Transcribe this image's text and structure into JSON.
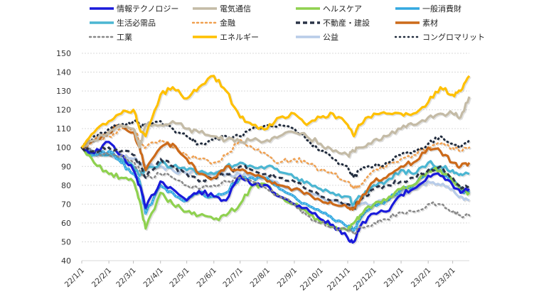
{
  "chart_data": {
    "type": "line",
    "title": "",
    "xlabel": "",
    "ylabel": "",
    "ylim": [
      40,
      150
    ],
    "yticks": [
      40,
      50,
      60,
      70,
      80,
      90,
      100,
      110,
      120,
      130,
      140,
      150
    ],
    "grid": true,
    "legend_position": "top",
    "x_tick_labels": [
      "22/1/1",
      "22/2/1",
      "22/3/1",
      "22/4/1",
      "22/5/1",
      "22/6/1",
      "22/7/1",
      "22/8/1",
      "22/9/1",
      "22/10/1",
      "22/11/1",
      "22/12/1",
      "23/1/1",
      "23/2/1",
      "23/3/1"
    ],
    "x": [
      "22/1/1",
      "22/1/15",
      "22/2/1",
      "22/2/15",
      "22/3/1",
      "22/3/8",
      "22/3/15",
      "22/4/1",
      "22/4/15",
      "22/5/1",
      "22/5/15",
      "22/6/1",
      "22/6/15",
      "22/7/1",
      "22/7/15",
      "22/8/1",
      "22/8/15",
      "22/9/1",
      "22/9/15",
      "22/10/1",
      "22/10/15",
      "22/11/1",
      "22/11/8",
      "22/11/15",
      "22/12/1",
      "22/12/15",
      "23/1/1",
      "23/1/15",
      "23/2/1",
      "23/2/15",
      "23/3/1",
      "23/3/10",
      "23/3/20"
    ],
    "series": [
      {
        "name": "情報テクノロジー",
        "color": "#1a1adb",
        "style": "solid",
        "values": [
          100,
          97,
          103,
          96,
          88,
          80,
          68,
          82,
          78,
          72,
          77,
          74,
          72,
          85,
          80,
          80,
          74,
          70,
          68,
          62,
          59,
          52,
          50,
          58,
          65,
          66,
          75,
          78,
          85,
          85,
          80,
          76,
          78
        ]
      },
      {
        "name": "電気通信",
        "color": "#c4bba6",
        "style": "solid",
        "values": [
          100,
          104,
          108,
          112,
          110,
          100,
          112,
          112,
          114,
          110,
          108,
          106,
          104,
          103,
          104,
          104,
          106,
          108,
          106,
          102,
          98,
          96,
          98,
          100,
          104,
          106,
          110,
          112,
          116,
          118,
          118,
          116,
          127
        ]
      },
      {
        "name": "ヘルスケア",
        "color": "#8fd14f",
        "style": "solid",
        "values": [
          100,
          92,
          86,
          84,
          82,
          72,
          57,
          76,
          70,
          66,
          64,
          62,
          64,
          70,
          80,
          80,
          74,
          70,
          66,
          60,
          58,
          56,
          60,
          64,
          70,
          72,
          78,
          80,
          88,
          88,
          82,
          78,
          76
        ]
      },
      {
        "name": "一般消費財",
        "color": "#33a8e0",
        "style": "dashed-fine",
        "values": [
          100,
          96,
          98,
          92,
          86,
          82,
          65,
          80,
          76,
          72,
          76,
          74,
          76,
          84,
          84,
          84,
          78,
          74,
          70,
          66,
          62,
          58,
          56,
          62,
          70,
          72,
          78,
          80,
          88,
          88,
          82,
          78,
          76
        ]
      },
      {
        "name": "生活必需品",
        "color": "#4bb6d2",
        "style": "solid",
        "values": [
          100,
          96,
          96,
          94,
          90,
          85,
          88,
          92,
          90,
          88,
          87,
          86,
          90,
          92,
          90,
          90,
          87,
          84,
          82,
          78,
          76,
          74,
          70,
          74,
          80,
          82,
          88,
          86,
          92,
          90,
          88,
          86,
          86
        ]
      },
      {
        "name": "金融",
        "color": "#f0a050",
        "style": "dotted",
        "values": [
          100,
          104,
          106,
          110,
          110,
          104,
          100,
          104,
          100,
          96,
          94,
          92,
          96,
          104,
          100,
          96,
          92,
          94,
          92,
          88,
          86,
          82,
          78,
          80,
          88,
          90,
          94,
          96,
          100,
          102,
          100,
          98,
          100
        ]
      },
      {
        "name": "不動産・建設",
        "color": "#2a3347",
        "style": "dashed",
        "values": [
          100,
          98,
          100,
          98,
          96,
          92,
          84,
          94,
          90,
          86,
          82,
          84,
          86,
          90,
          88,
          86,
          84,
          82,
          78,
          74,
          72,
          70,
          68,
          72,
          78,
          80,
          82,
          84,
          88,
          90,
          84,
          78,
          80
        ]
      },
      {
        "name": "素材",
        "color": "#cc6a1a",
        "style": "solid",
        "values": [
          100,
          104,
          108,
          112,
          108,
          100,
          88,
          100,
          102,
          94,
          86,
          84,
          90,
          88,
          86,
          82,
          80,
          78,
          76,
          72,
          70,
          68,
          68,
          72,
          82,
          84,
          90,
          92,
          100,
          98,
          92,
          90,
          92
        ]
      },
      {
        "name": "工業",
        "color": "#888888",
        "style": "dotted",
        "values": [
          100,
          98,
          96,
          96,
          92,
          88,
          84,
          86,
          84,
          80,
          78,
          80,
          82,
          84,
          82,
          78,
          74,
          70,
          64,
          60,
          58,
          56,
          54,
          58,
          60,
          62,
          66,
          66,
          70,
          70,
          66,
          64,
          64
        ]
      },
      {
        "name": "エネルギー",
        "color": "#ffc000",
        "style": "solid",
        "values": [
          100,
          108,
          114,
          118,
          120,
          110,
          106,
          128,
          132,
          126,
          132,
          138,
          130,
          116,
          112,
          110,
          116,
          118,
          112,
          116,
          118,
          112,
          106,
          112,
          118,
          118,
          118,
          118,
          124,
          132,
          128,
          130,
          138
        ]
      },
      {
        "name": "公益",
        "color": "#b8cce8",
        "style": "solid",
        "values": [
          100,
          97,
          96,
          95,
          94,
          92,
          90,
          90,
          88,
          86,
          87,
          86,
          86,
          86,
          85,
          83,
          80,
          78,
          76,
          74,
          72,
          70,
          68,
          70,
          70,
          72,
          76,
          78,
          82,
          80,
          78,
          74,
          72
        ]
      },
      {
        "name": "コングロマリット",
        "color": "#1f2a3c",
        "style": "dotted-bold",
        "values": [
          100,
          106,
          110,
          112,
          114,
          112,
          112,
          114,
          110,
          106,
          102,
          104,
          106,
          106,
          110,
          112,
          112,
          110,
          104,
          98,
          94,
          90,
          84,
          88,
          90,
          92,
          96,
          98,
          102,
          106,
          102,
          100,
          104
        ]
      }
    ]
  },
  "legend": {
    "items": [
      "情報テクノロジー",
      "電気通信",
      "ヘルスケア",
      "一般消費財",
      "生活必需品",
      "金融",
      "不動産・建設",
      "素材",
      "工業",
      "エネルギー",
      "公益",
      "コングロマリット"
    ]
  }
}
